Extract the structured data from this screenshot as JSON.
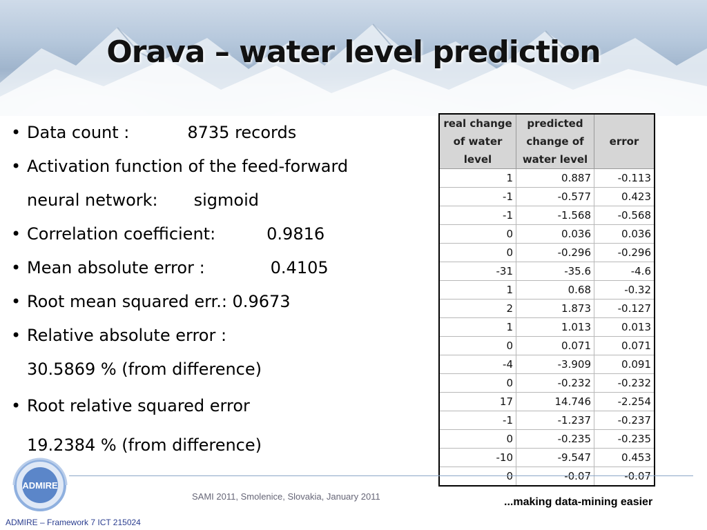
{
  "slide": {
    "title": "Orava – water level prediction",
    "bullets": {
      "data_count_label": "Data count :",
      "data_count_value": "8735 records",
      "activation_line1": "Activation function of the feed-forward",
      "activation_line2_label": "neural network:",
      "activation_value": "sigmoid",
      "correlation_label": "Correlation coefficient:",
      "correlation_value": "0.9816",
      "mae_label": "Mean absolute error :",
      "mae_value": "0.4105",
      "rmse_text": "Root mean squared err.: 0.9673",
      "rae_label": "Relative absolute error :",
      "rae_value": "30.5869 % (from difference)",
      "rrse_label": "Root relative squared error",
      "rrse_value": "19.2384 % (from difference)"
    },
    "table": {
      "headers": [
        "real change of water level",
        "predicted change of water level",
        "error"
      ],
      "rows": [
        [
          "1",
          "0.887",
          "-0.113"
        ],
        [
          "-1",
          "-0.577",
          "0.423"
        ],
        [
          "-1",
          "-1.568",
          "-0.568"
        ],
        [
          "0",
          "0.036",
          "0.036"
        ],
        [
          "0",
          "-0.296",
          "-0.296"
        ],
        [
          "-31",
          "-35.6",
          "-4.6"
        ],
        [
          "1",
          "0.68",
          "-0.32"
        ],
        [
          "2",
          "1.873",
          "-0.127"
        ],
        [
          "1",
          "1.013",
          "0.013"
        ],
        [
          "0",
          "0.071",
          "0.071"
        ],
        [
          "-4",
          "-3.909",
          "0.091"
        ],
        [
          "0",
          "-0.232",
          "-0.232"
        ],
        [
          "17",
          "14.746",
          "-2.254"
        ],
        [
          "-1",
          "-1.237",
          "-0.237"
        ],
        [
          "0",
          "-0.235",
          "-0.235"
        ],
        [
          "-10",
          "-9.547",
          "0.453"
        ],
        [
          "0",
          "-0.07",
          "-0.07"
        ]
      ]
    },
    "footer": {
      "logo_text": "ADMIRE",
      "center": "SAMI 2011, Smolenice, Slovakia, January 2011",
      "tagline": "...making data-mining easier",
      "left": "ADMIRE – Framework 7 ICT 215024"
    },
    "colors": {
      "footer_left_text": "#2a3d8f",
      "rule": "#8aa6c7",
      "logo_blue": "#5b86c9"
    }
  }
}
